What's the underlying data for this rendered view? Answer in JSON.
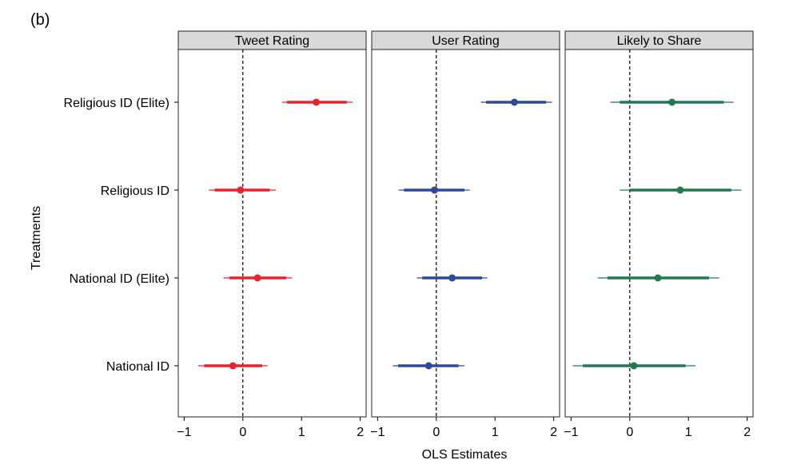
{
  "figure_label": "(b)",
  "chart_data": {
    "type": "scatter",
    "subtype": "forest / coefficient plot with 90% and 95% confidence intervals",
    "xlabel": "OLS Estimates",
    "ylabel": "Treatments",
    "xlim": [
      -1.1,
      2.1
    ],
    "x_ticks": [
      -1,
      0,
      1,
      2
    ],
    "x_tick_labels": [
      "−1",
      "0",
      "1",
      "2"
    ],
    "reference_line": 0,
    "categories": [
      "Religious ID (Elite)",
      "Religious ID",
      "National ID (Elite)",
      "National ID"
    ],
    "panels": [
      {
        "title": "Tweet Rating",
        "color": "#e8232d",
        "points": [
          {
            "treatment": "Religious ID (Elite)",
            "estimate": 1.25,
            "ci90": [
              0.75,
              1.77
            ],
            "ci95": [
              0.67,
              1.87
            ]
          },
          {
            "treatment": "Religious ID",
            "estimate": -0.04,
            "ci90": [
              -0.48,
              0.46
            ],
            "ci95": [
              -0.58,
              0.56
            ]
          },
          {
            "treatment": "National ID (Elite)",
            "estimate": 0.25,
            "ci90": [
              -0.23,
              0.74
            ],
            "ci95": [
              -0.33,
              0.84
            ]
          },
          {
            "treatment": "National ID",
            "estimate": -0.17,
            "ci90": [
              -0.66,
              0.33
            ],
            "ci95": [
              -0.76,
              0.42
            ]
          }
        ]
      },
      {
        "title": "User Rating",
        "color": "#2b4a9b",
        "points": [
          {
            "treatment": "Religious ID (Elite)",
            "estimate": 1.33,
            "ci90": [
              0.85,
              1.87
            ],
            "ci95": [
              0.76,
              1.97
            ]
          },
          {
            "treatment": "Religious ID",
            "estimate": -0.03,
            "ci90": [
              -0.55,
              0.48
            ],
            "ci95": [
              -0.64,
              0.57
            ]
          },
          {
            "treatment": "National ID (Elite)",
            "estimate": 0.27,
            "ci90": [
              -0.24,
              0.78
            ],
            "ci95": [
              -0.33,
              0.87
            ]
          },
          {
            "treatment": "National ID",
            "estimate": -0.13,
            "ci90": [
              -0.65,
              0.38
            ],
            "ci95": [
              -0.74,
              0.48
            ]
          }
        ]
      },
      {
        "title": "Likely to Share",
        "color": "#1f7a50",
        "points": [
          {
            "treatment": "Religious ID (Elite)",
            "estimate": 0.72,
            "ci90": [
              -0.17,
              1.6
            ],
            "ci95": [
              -0.33,
              1.77
            ]
          },
          {
            "treatment": "Religious ID",
            "estimate": 0.86,
            "ci90": [
              0.0,
              1.73
            ],
            "ci95": [
              -0.17,
              1.9
            ]
          },
          {
            "treatment": "National ID (Elite)",
            "estimate": 0.48,
            "ci90": [
              -0.38,
              1.35
            ],
            "ci95": [
              -0.55,
              1.52
            ]
          },
          {
            "treatment": "National ID",
            "estimate": 0.07,
            "ci90": [
              -0.8,
              0.95
            ],
            "ci95": [
              -0.97,
              1.12
            ]
          }
        ]
      }
    ],
    "grid": false,
    "legend": "none"
  }
}
